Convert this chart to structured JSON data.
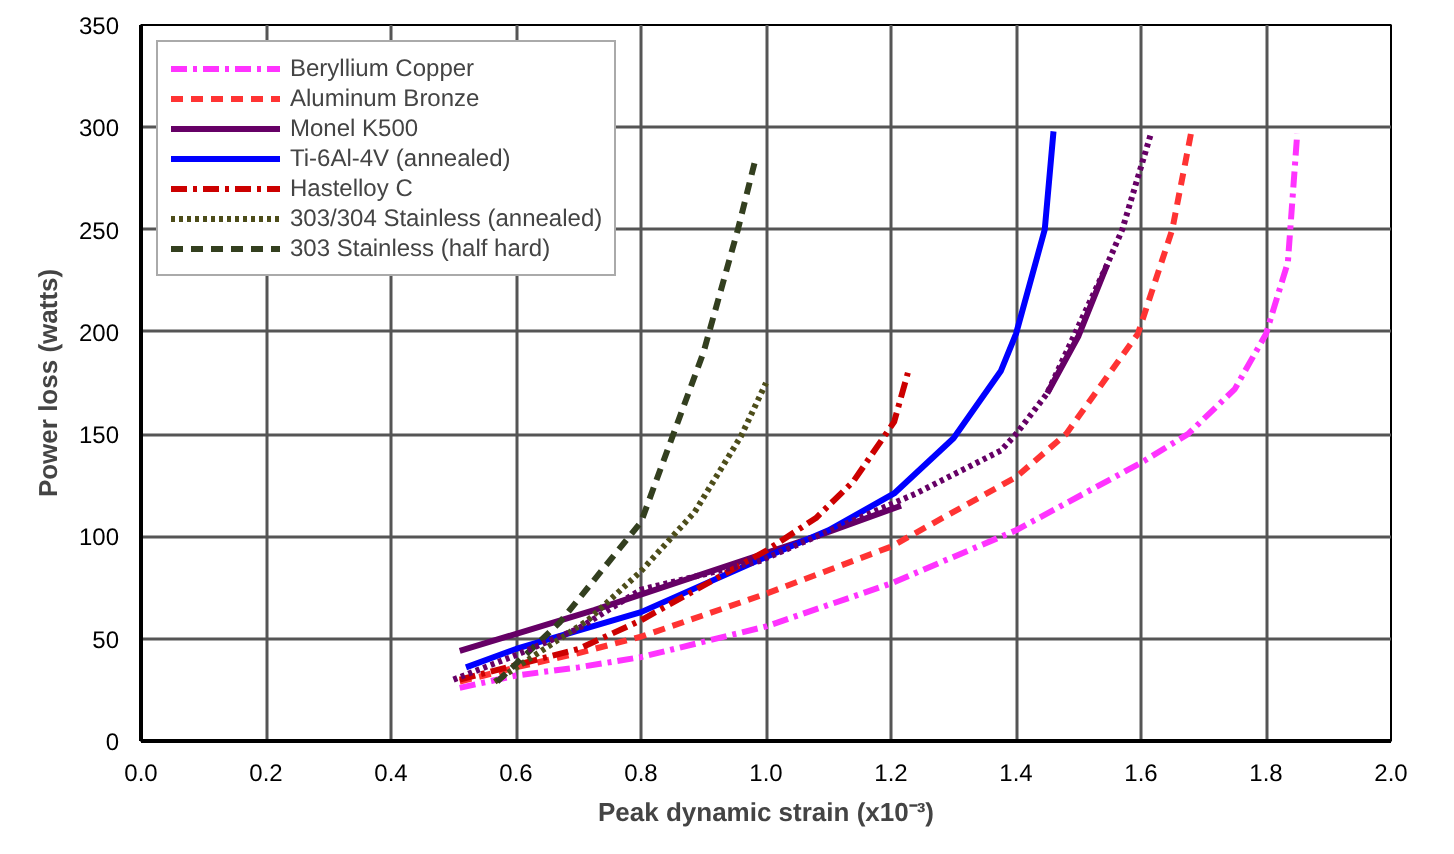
{
  "chart_data": {
    "type": "line",
    "xlabel": "Peak dynamic strain (x10⁻³)",
    "ylabel": "Power loss (watts)",
    "xlim": [
      0,
      2
    ],
    "ylim": [
      0,
      350
    ],
    "xticks": [
      {
        "value": 0,
        "label": "0.0"
      },
      {
        "value": 0.2,
        "label": "0.2"
      },
      {
        "value": 0.4,
        "label": "0.4"
      },
      {
        "value": 0.6,
        "label": "0.6"
      },
      {
        "value": 0.8,
        "label": "0.8"
      },
      {
        "value": 1.0,
        "label": "1.0"
      },
      {
        "value": 1.2,
        "label": "1.2"
      },
      {
        "value": 1.4,
        "label": "1.4"
      },
      {
        "value": 1.6,
        "label": "1.6"
      },
      {
        "value": 1.8,
        "label": "1.8"
      },
      {
        "value": 2.0,
        "label": "2.0"
      }
    ],
    "yticks": [
      0,
      50,
      100,
      150,
      200,
      250,
      300,
      350
    ],
    "grid": true,
    "legend": "top left",
    "marker": "none",
    "series": [
      {
        "name": "Beryllium Copper",
        "color": "#ff33ff",
        "line_style": "dashdot",
        "x": [
          0.51,
          0.6,
          0.7,
          0.8,
          1.0,
          1.2,
          1.4,
          1.6,
          1.675,
          1.75,
          1.8,
          1.835,
          1.85
        ],
        "values": [
          26,
          32,
          36,
          41,
          56,
          77,
          103,
          136,
          150,
          172,
          199,
          234,
          297
        ]
      },
      {
        "name": "Aluminum Bronze",
        "color": "#ff3333",
        "line_style": "dashed",
        "x": [
          0.51,
          0.6,
          0.7,
          0.8,
          1.0,
          1.2,
          1.4,
          1.48,
          1.595,
          1.65,
          1.68
        ],
        "values": [
          29,
          36,
          43,
          51,
          72,
          95,
          129,
          150,
          199,
          250,
          297
        ]
      },
      {
        "name": "Monel K500",
        "color": "#660066",
        "line_style": "solid",
        "x": [
          0.51,
          0.725,
          1.08,
          1.216
        ],
        "values": [
          44,
          64,
          100,
          115
        ]
      },
      {
        "name": "Ti-6Al-4V (annealed)",
        "color": "#0000ff",
        "line_style": "solid",
        "x": [
          0.52,
          0.6,
          0.8,
          1.0,
          1.1,
          1.205,
          1.3,
          1.376,
          1.4,
          1.446,
          1.46
        ],
        "values": [
          36,
          45,
          63,
          90,
          103,
          121,
          148,
          181,
          199,
          250,
          298
        ]
      },
      {
        "name": "Hastelloy C",
        "color": "#cc0000",
        "line_style": "dashdot",
        "x": [
          0.51,
          0.7,
          0.8,
          1.0,
          1.08,
          1.14,
          1.205,
          1.227
        ],
        "values": [
          30,
          45,
          59,
          93,
          109,
          127,
          156,
          180
        ]
      },
      {
        "name": "303/304 Stainless (annealed)",
        "color": "#4d4d1a",
        "line_style": "dotted",
        "x": [
          0.566,
          0.715,
          0.8,
          0.886,
          0.96,
          1.0
        ],
        "values": [
          29,
          59,
          83,
          112,
          149,
          175
        ]
      },
      {
        "name": "303 Stainless (half hard)",
        "color": "#333f1f",
        "line_style": "dashed",
        "x": [
          0.57,
          0.67,
          0.8,
          0.9,
          0.955,
          0.982
        ],
        "values": [
          29,
          58,
          107,
          190,
          250,
          283
        ]
      },
      {
        "color": "#660066",
        "line_style": "dotted",
        "x": [
          0.5,
          0.6,
          0.7,
          0.8,
          0.99,
          1.24,
          1.376,
          1.4,
          1.45,
          1.546,
          1.57,
          1.616
        ],
        "values": [
          30,
          42,
          55,
          74,
          88,
          121,
          142,
          150,
          170,
          233,
          250,
          297
        ]
      },
      {
        "color": "#660066",
        "line_style": "solid",
        "x": [
          1.45,
          1.5,
          1.546
        ],
        "values": [
          170,
          198,
          233
        ]
      }
    ]
  }
}
